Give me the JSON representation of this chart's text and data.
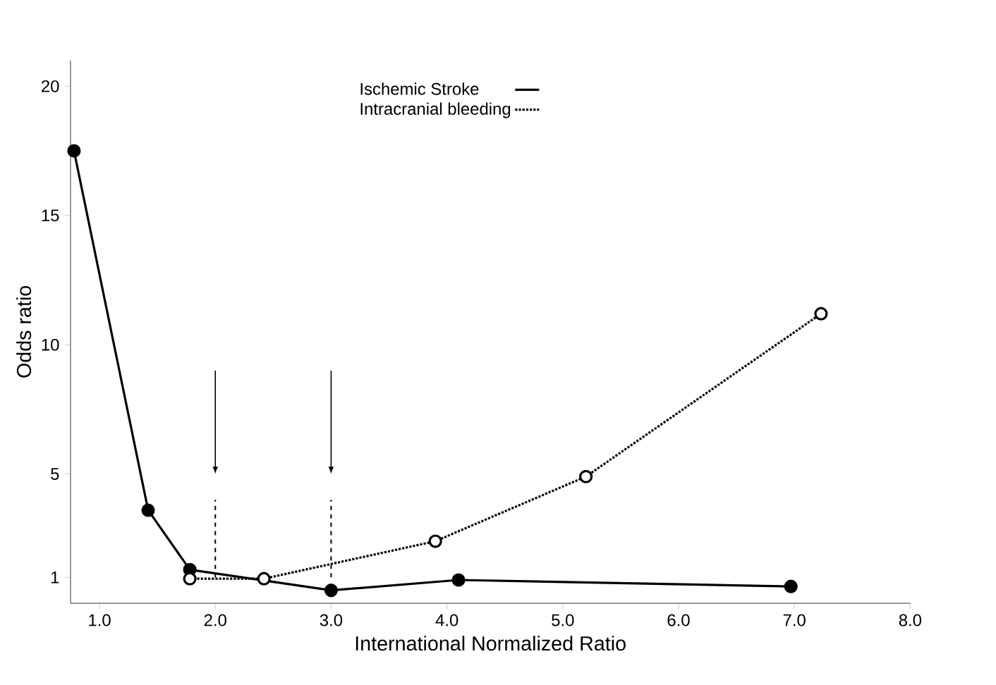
{
  "chart_data": {
    "type": "line",
    "xlabel": "International Normalized Ratio",
    "ylabel": "Odds ratio",
    "xlim": [
      0.75,
      8.0
    ],
    "xticks": [
      {
        "value": 1,
        "label": "1.0"
      },
      {
        "value": 2,
        "label": "2.0"
      },
      {
        "value": 3,
        "label": "3.0"
      },
      {
        "value": 4,
        "label": "4.0"
      },
      {
        "value": 5,
        "label": "5.0"
      },
      {
        "value": 6,
        "label": "6.0"
      },
      {
        "value": 7,
        "label": "7.0"
      },
      {
        "value": 8,
        "label": "8.0"
      }
    ],
    "ylim": [
      0,
      21
    ],
    "yticks": [
      1,
      5,
      10,
      15,
      20
    ],
    "legend": "top",
    "grid": false,
    "series": [
      {
        "name": "Ischemic Stroke",
        "color": "#000000",
        "line_style": "solid",
        "marker": "circle",
        "x": [
          0.78,
          1.42,
          1.78,
          3.0,
          4.1,
          6.97
        ],
        "values": [
          17.5,
          3.6,
          1.3,
          0.5,
          0.9,
          0.65
        ]
      },
      {
        "name": "Intracranial bleeding",
        "color": "#000000",
        "line_style": "dotted",
        "marker": "circle",
        "x": [
          1.78,
          2.42,
          3.9,
          5.2,
          7.23
        ],
        "values": [
          0.95,
          0.95,
          2.4,
          4.9,
          11.2
        ]
      }
    ],
    "ref_lines": [
      {
        "axis": "x",
        "value": 2,
        "line_style": "dashed",
        "color": "#000000"
      },
      {
        "axis": "x",
        "value": 3,
        "line_style": "dashed",
        "color": "#000000"
      }
    ]
  }
}
